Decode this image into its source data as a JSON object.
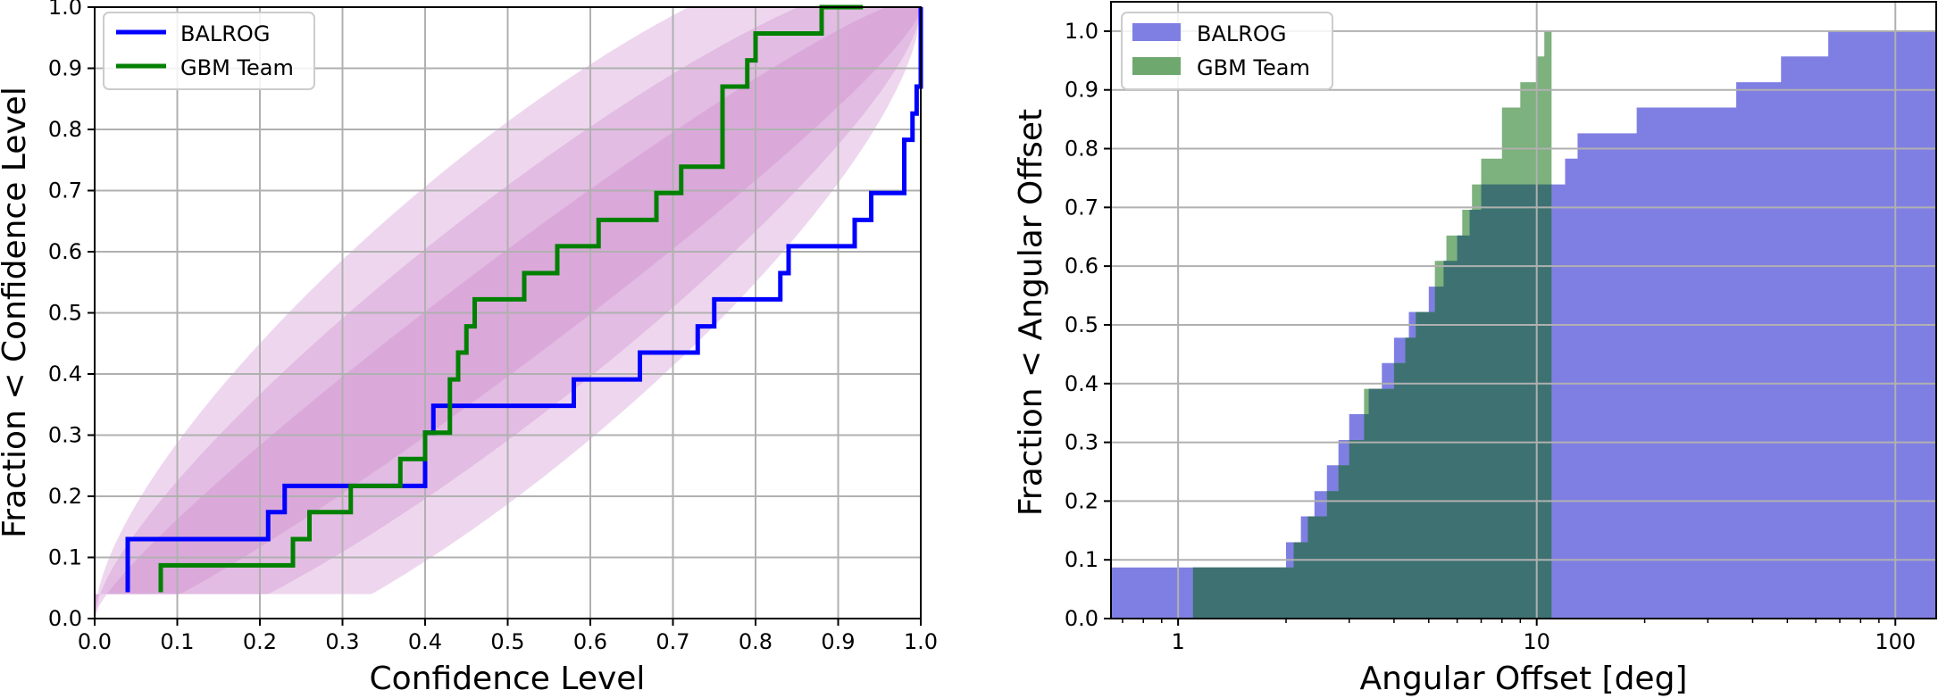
{
  "chart_data": [
    {
      "type": "line",
      "step": "post",
      "xlabel": "Confidence Level",
      "ylabel": "Fraction < Confidence Level",
      "xlim": [
        0.0,
        1.0
      ],
      "ylim": [
        0.0,
        1.0
      ],
      "xticks": [
        "0.0",
        "0.1",
        "0.2",
        "0.3",
        "0.4",
        "0.5",
        "0.6",
        "0.7",
        "0.8",
        "0.9",
        "1.0"
      ],
      "yticks": [
        "0.0",
        "0.1",
        "0.2",
        "0.3",
        "0.4",
        "0.5",
        "0.6",
        "0.7",
        "0.8",
        "0.9",
        "1.0"
      ],
      "grid": true,
      "legend": "upper left",
      "band_color": "#c983c9",
      "series": [
        {
          "name": "BALROG",
          "color": "#0000ff",
          "x": [
            0.04,
            0.04,
            0.21,
            0.23,
            0.4,
            0.41,
            0.45,
            0.58,
            0.66,
            0.73,
            0.75,
            0.83,
            0.84,
            0.92,
            0.94,
            0.98,
            0.99,
            0.995,
            1.0
          ],
          "y": [
            0.043,
            0.13,
            0.174,
            0.217,
            0.304,
            0.348,
            0.348,
            0.391,
            0.435,
            0.478,
            0.522,
            0.565,
            0.609,
            0.652,
            0.696,
            0.783,
            0.826,
            0.87,
            1.0
          ]
        },
        {
          "name": "GBM Team",
          "color": "#008000",
          "x": [
            0.08,
            0.08,
            0.24,
            0.26,
            0.31,
            0.37,
            0.4,
            0.43,
            0.44,
            0.45,
            0.46,
            0.52,
            0.56,
            0.61,
            0.68,
            0.71,
            0.76,
            0.79,
            0.8,
            0.88,
            0.93
          ],
          "y": [
            0.043,
            0.087,
            0.13,
            0.174,
            0.217,
            0.261,
            0.304,
            0.391,
            0.435,
            0.478,
            0.522,
            0.565,
            0.609,
            0.652,
            0.696,
            0.739,
            0.87,
            0.913,
            0.957,
            1.0,
            1.0
          ]
        }
      ]
    },
    {
      "type": "area",
      "step": "post",
      "xscale": "log",
      "xlabel": "Angular Offset [deg]",
      "ylabel": "Fraction < Angular Offset",
      "xlim": [
        0.65,
        130
      ],
      "ylim": [
        0.0,
        1.05
      ],
      "xticks": [
        "1",
        "10",
        "100"
      ],
      "yticks": [
        "0.0",
        "0.1",
        "0.2",
        "0.3",
        "0.4",
        "0.5",
        "0.6",
        "0.7",
        "0.8",
        "0.9",
        "1.0"
      ],
      "grid": true,
      "legend": "upper left",
      "series": [
        {
          "name": "BALROG",
          "color": "#7f7fe3",
          "x": [
            0.65,
            1.1,
            2.0,
            2.2,
            2.4,
            2.6,
            2.8,
            3.0,
            3.4,
            3.7,
            4.0,
            4.4,
            5.0,
            5.5,
            6.0,
            6.5,
            7.0,
            8.0,
            9.0,
            10.0,
            11.0,
            12.0,
            13.0,
            19.0,
            36.0,
            48.0,
            65.0
          ],
          "y": [
            0.087,
            0.087,
            0.13,
            0.174,
            0.217,
            0.261,
            0.304,
            0.348,
            0.391,
            0.435,
            0.478,
            0.522,
            0.565,
            0.609,
            0.652,
            0.696,
            0.739,
            0.739,
            0.739,
            0.739,
            0.739,
            0.783,
            0.826,
            0.87,
            0.913,
            0.957,
            1.0
          ]
        },
        {
          "name": "GBM Team",
          "color": "#6fa86f",
          "x": [
            0.65,
            1.1,
            2.1,
            2.3,
            2.6,
            2.8,
            3.0,
            3.3,
            4.0,
            4.3,
            4.6,
            5.2,
            5.6,
            6.2,
            6.6,
            7.0,
            8.0,
            9.0,
            10.0,
            10.5
          ],
          "y": [
            0.0,
            0.087,
            0.13,
            0.174,
            0.217,
            0.261,
            0.304,
            0.391,
            0.435,
            0.478,
            0.522,
            0.609,
            0.652,
            0.696,
            0.739,
            0.783,
            0.87,
            0.913,
            0.957,
            1.0
          ],
          "x_end": 11.0
        }
      ]
    }
  ]
}
